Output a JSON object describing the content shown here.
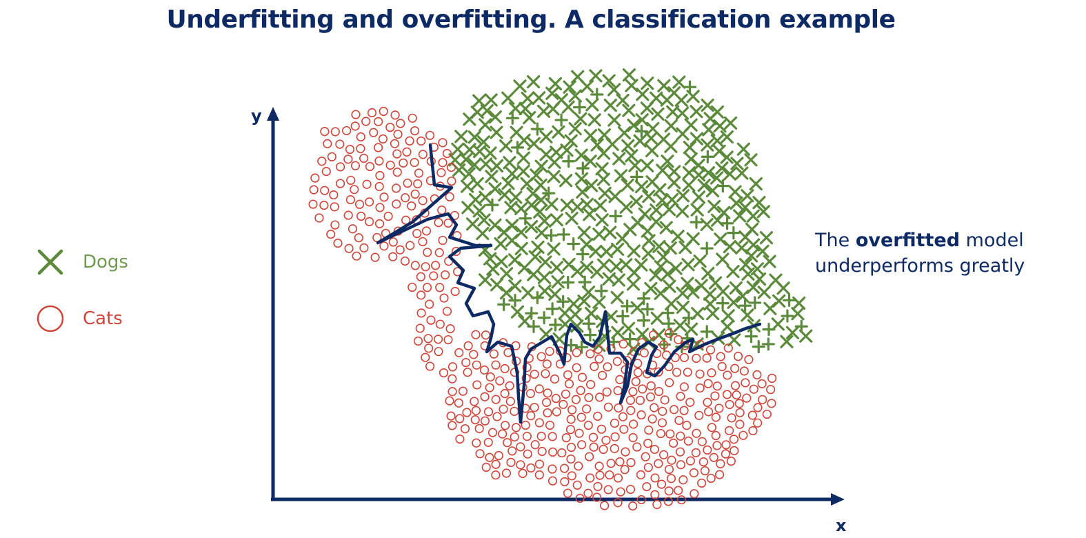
{
  "title": "Underfitting and overfitting. A classification example",
  "legend": {
    "dogs_label": "Dogs",
    "cats_label": "Cats",
    "dogs_icon": "cross-icon",
    "cats_icon": "circle-icon"
  },
  "annotation": {
    "prefix": "The",
    "emphasis": "overfitted",
    "suffix": "model",
    "line2": "underperforms greatly"
  },
  "axes": {
    "x_label": "x",
    "y_label": "y"
  },
  "colors": {
    "navy": "#0e2a64",
    "dogs": "#5b8a3a",
    "cats": "#d0453a"
  }
}
